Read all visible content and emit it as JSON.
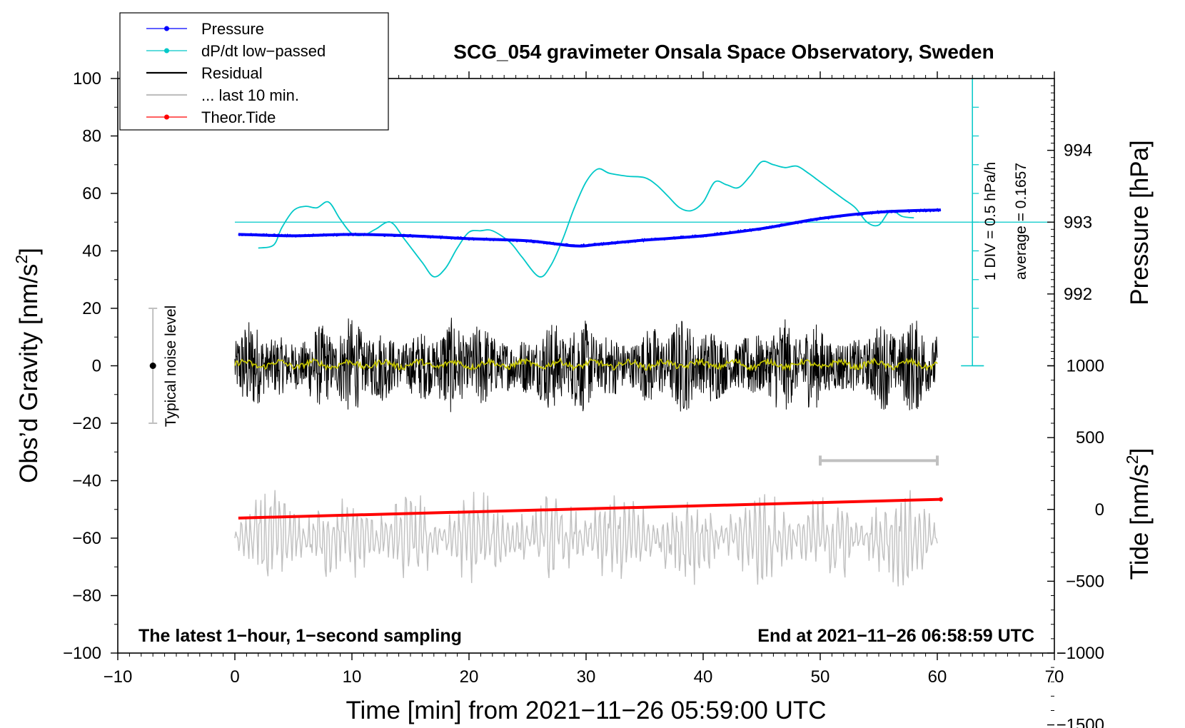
{
  "chart_data": {
    "type": "line",
    "title": "SCG_054 gravimeter Onsala Space Observatory, Sweden",
    "xlabel": "Time [min] from 2021−11−26 05:59:00 UTC",
    "ylabel_left": "Obs’d Gravity [nm/s",
    "ylabel_left_sup": "2",
    "ylabel_left_end": "]",
    "ylabel_right_pressure": "Pressure [hPa]",
    "ylabel_right_tide": "Tide [nm/s",
    "ylabel_right_tide_sup": "2",
    "ylabel_right_tide_end": "]",
    "xlim": [
      -10,
      70
    ],
    "ylim_left": [
      -100,
      100
    ],
    "xticks": [
      -10,
      0,
      10,
      20,
      30,
      40,
      50,
      60,
      70
    ],
    "xtick_labels": [
      "−10",
      "0",
      "10",
      "20",
      "30",
      "40",
      "50",
      "60",
      "70"
    ],
    "yticks_left": [
      100,
      80,
      60,
      40,
      20,
      0,
      -20,
      -40,
      -60,
      -80,
      -100
    ],
    "ytick_labels_left": [
      "100",
      "80",
      "60",
      "40",
      "20",
      "0",
      "−20",
      "−40",
      "−60",
      "−80",
      "−100"
    ],
    "pressure_axis": {
      "ticks": [
        994,
        993,
        992
      ],
      "tick_labels": [
        "994",
        "993",
        "992"
      ],
      "gravity_at_993": 50,
      "gravity_per_hpa": 25
    },
    "tide_axis": {
      "ticks": [
        1000,
        500,
        0,
        -500,
        -1000,
        -1500
      ],
      "tick_labels": [
        "1000",
        "500",
        "0",
        "−500",
        "−1000",
        "−1500"
      ],
      "gravity_at_0": -50,
      "gravity_per_unit": 0.05
    },
    "legend": {
      "position": "top-left",
      "entries": [
        {
          "label": "Pressure",
          "color": "#0000ff",
          "marker": true
        },
        {
          "label": "dP/dt low−passed",
          "color": "#00c8c8",
          "marker": true
        },
        {
          "label": "Residual",
          "color": "#000000",
          "marker": false
        },
        {
          "label": "... last 10 min.",
          "color": "#c0c0c0",
          "marker": false
        },
        {
          "label": "Theor.Tide",
          "color": "#ff0000",
          "marker": true
        }
      ]
    },
    "annotations": {
      "bottom_left": "The latest 1−hour, 1−second sampling",
      "bottom_right": "End at 2021−11−26 06:58:59 UTC",
      "noise_label": "Typical noise level",
      "noise_bar": {
        "x": -7,
        "center": 0,
        "low": -20,
        "high": 20
      },
      "dpdt_scale_1": "1 DIV = 0.5 hPa/h",
      "dpdt_scale_2": "average = 0.1657",
      "dpdt_scale_axis": {
        "x": 63,
        "top": 100,
        "bottom": 0,
        "divisions": 10
      },
      "last10_bar": {
        "x_start": 50,
        "x_end": 60,
        "y": -33
      }
    },
    "series": [
      {
        "name": "Pressure",
        "color": "#0000ff",
        "x": [
          0.3,
          5,
          10,
          15,
          20,
          25,
          29,
          31,
          35,
          40,
          45,
          50,
          55,
          60.3
        ],
        "y": [
          992.83,
          992.81,
          992.83,
          992.81,
          992.77,
          992.74,
          992.67,
          992.69,
          992.75,
          992.81,
          992.91,
          993.05,
          993.14,
          993.17
        ]
      },
      {
        "name": "dP/dt low-passed",
        "color": "#00c8c8",
        "baseline": 50,
        "x": [
          2,
          3.3,
          4,
          5,
          6,
          7,
          8,
          9,
          10,
          11,
          12,
          13.3,
          14.5,
          16,
          17,
          18,
          19,
          20,
          21,
          22,
          23.5,
          24.5,
          26,
          27,
          28,
          29,
          30,
          31,
          32,
          33.5,
          35,
          36,
          37,
          38,
          39,
          40,
          41,
          42,
          43,
          44,
          45,
          46,
          47,
          48,
          49,
          50,
          51,
          52,
          53,
          54,
          55,
          56,
          57,
          58
        ],
        "y": [
          41,
          42,
          48,
          54,
          55.5,
          55,
          57,
          51,
          46,
          45.5,
          47.5,
          50,
          44,
          36,
          31,
          34,
          41,
          46.5,
          47,
          47,
          43,
          38,
          31,
          35,
          44,
          55,
          64,
          68.5,
          67,
          66,
          65.5,
          63,
          59,
          55,
          54,
          57,
          64,
          63,
          62,
          66,
          71,
          70,
          69,
          69.5,
          67,
          64,
          61,
          58,
          55,
          50,
          49,
          54,
          52,
          51.5
        ]
      },
      {
        "name": "Residual",
        "color": "#000000",
        "x_start": 0,
        "x_end": 60,
        "center": 0,
        "amplitude": 17
      },
      {
        "name": "Residual smoothed",
        "color": "#c8c800",
        "x_start": 0,
        "x_end": 60,
        "center": 0.5,
        "amplitude": 2
      },
      {
        "name": "Residual last 10 min",
        "color": "#c0c0c0",
        "x_start": 0,
        "x_end": 60,
        "center": -60,
        "amplitude": 17
      },
      {
        "name": "Theor.Tide",
        "color": "#ff0000",
        "x": [
          0.3,
          60.3
        ],
        "y": [
          -53,
          -46.5
        ]
      }
    ]
  }
}
